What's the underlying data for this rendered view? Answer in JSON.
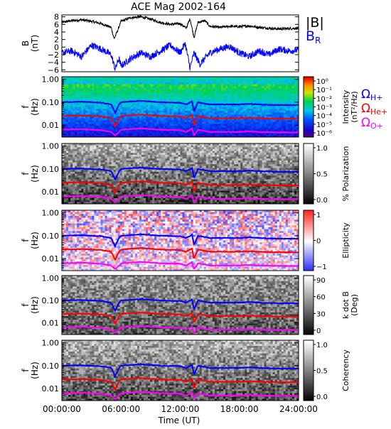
{
  "chart_data": {
    "type": "heatmap",
    "title": "ACE Mag 2002-164",
    "x": {
      "label": "Time (UT)",
      "range": [
        0,
        24
      ],
      "tick_labels": [
        "00:00:00",
        "06:00:00",
        "12:00:00",
        "18:00:00",
        "24:00:00"
      ],
      "tick_values": [
        0,
        6,
        12,
        18,
        24
      ]
    },
    "mag_panel": {
      "ylabel_line1": "B",
      "ylabel_line2": "(nT)",
      "ylim": [
        -6.5,
        8.5
      ],
      "y_tick_labels": [
        "8",
        "6",
        "4",
        "2",
        "0",
        "−2",
        "−4",
        "−6"
      ],
      "y_tick_values": [
        8,
        6,
        4,
        2,
        0,
        -2,
        -4,
        -6
      ],
      "series": [
        {
          "name": "|B|",
          "color": "#000000",
          "key_points": [
            [
              0,
              6.5
            ],
            [
              1,
              7.0
            ],
            [
              2,
              7.2
            ],
            [
              3,
              6.8
            ],
            [
              4,
              6.2
            ],
            [
              5,
              5.2
            ],
            [
              5.3,
              2.2
            ],
            [
              5.6,
              4.0
            ],
            [
              6,
              6.8
            ],
            [
              7,
              7.8
            ],
            [
              8,
              8.0
            ],
            [
              9,
              7.4
            ],
            [
              10,
              6.5
            ],
            [
              11,
              6.0
            ],
            [
              12,
              6.2
            ],
            [
              12.6,
              5.0
            ],
            [
              13,
              7.5
            ],
            [
              13.4,
              2.5
            ],
            [
              13.8,
              6.5
            ],
            [
              14.5,
              7.0
            ],
            [
              15,
              5.5
            ],
            [
              16,
              5.2
            ],
            [
              17,
              5.5
            ],
            [
              18,
              5.4
            ],
            [
              19,
              5.6
            ],
            [
              20,
              5.2
            ],
            [
              21,
              5.0
            ],
            [
              22,
              4.8
            ],
            [
              23,
              4.9
            ],
            [
              24,
              5.0
            ]
          ]
        },
        {
          "name": "B",
          "subscript": "R",
          "color": "#0000ff",
          "key_points": [
            [
              0,
              -1.5
            ],
            [
              1,
              -1.0
            ],
            [
              2,
              -2.5
            ],
            [
              3,
              0.5
            ],
            [
              4,
              -0.5
            ],
            [
              5,
              -2.0
            ],
            [
              5.4,
              -5.8
            ],
            [
              5.8,
              -3.0
            ],
            [
              6,
              -5.0
            ],
            [
              7,
              -3.0
            ],
            [
              8,
              -1.5
            ],
            [
              9,
              -2.5
            ],
            [
              10,
              -1.0
            ],
            [
              11,
              0.5
            ],
            [
              12,
              -1.5
            ],
            [
              12.5,
              1.0
            ],
            [
              13,
              -5.5
            ],
            [
              13.4,
              -1.5
            ],
            [
              14,
              -4.5
            ],
            [
              15,
              -1.5
            ],
            [
              16,
              -0.5
            ],
            [
              17,
              0.2
            ],
            [
              18,
              -1.5
            ],
            [
              19,
              -2.5
            ],
            [
              20,
              -1.0
            ],
            [
              21,
              -2.0
            ],
            [
              22,
              -0.5
            ],
            [
              23,
              -1.0
            ],
            [
              24,
              -0.8
            ]
          ]
        }
      ]
    },
    "freq_panels": [
      {
        "id": "intensity",
        "ylabel_line1": "f",
        "ylabel_line2": "(Hz)",
        "y_tick_labels": [
          "1.00",
          "0.10",
          "0.01"
        ],
        "y_tick_values": [
          1,
          0.1,
          0.01
        ],
        "ylim": [
          0.003,
          1.3
        ],
        "log_scale": true,
        "colormap": "rainbow",
        "colorbar_label_line1": "Intensity",
        "colorbar_label_line2": "(nT²/Hz)",
        "colorbar_tick_labels": [
          "10⁰",
          "10⁻¹",
          "10⁻²",
          "10⁻³",
          "10⁻⁴",
          "10⁻⁵",
          "10⁻⁶"
        ],
        "colorbar_tick_values": [
          0,
          -1,
          -2,
          -3,
          -4,
          -5,
          -6
        ]
      },
      {
        "id": "polarization",
        "ylabel_line1": "f",
        "ylabel_line2": "(Hz)",
        "y_tick_labels": [
          "1.00",
          "0.10",
          "0.01"
        ],
        "y_tick_values": [
          1,
          0.1,
          0.01
        ],
        "ylim": [
          0.003,
          1.3
        ],
        "log_scale": true,
        "colormap": "grayscale",
        "colorbar_label_line1": "% Polarization",
        "colorbar_label_line2": "",
        "colorbar_tick_labels": [
          "1.0",
          "0.5",
          "0.0"
        ],
        "colorbar_tick_values": [
          1,
          0.5,
          0
        ]
      },
      {
        "id": "ellipticity",
        "ylabel_line1": "f",
        "ylabel_line2": "(Hz)",
        "y_tick_labels": [
          "1.00",
          "0.10",
          "0.01"
        ],
        "y_tick_values": [
          1,
          0.1,
          0.01
        ],
        "ylim": [
          0.003,
          1.3
        ],
        "log_scale": true,
        "colormap": "blue-white-red",
        "colorbar_label_line1": "Ellipticity",
        "colorbar_label_line2": "",
        "colorbar_tick_labels": [
          "1",
          "0",
          "−1"
        ],
        "colorbar_tick_values": [
          1,
          0,
          -1
        ]
      },
      {
        "id": "kdotb",
        "ylabel_line1": "f",
        "ylabel_line2": "(Hz)",
        "y_tick_labels": [
          "1.00",
          "0.10",
          "0.01"
        ],
        "y_tick_values": [
          1,
          0.1,
          0.01
        ],
        "ylim": [
          0.003,
          1.3
        ],
        "log_scale": true,
        "colormap": "grayscale",
        "colorbar_label_line1": "k dot B",
        "colorbar_label_line2": "(Deg)",
        "colorbar_tick_labels": [
          "90",
          "60",
          "30",
          "0"
        ],
        "colorbar_tick_values": [
          90,
          60,
          30,
          0
        ]
      },
      {
        "id": "coherency",
        "ylabel_line1": "f",
        "ylabel_line2": "(Hz)",
        "y_tick_labels": [
          "1.00",
          "0.10",
          "0.01"
        ],
        "y_tick_values": [
          1,
          0.1,
          0.01
        ],
        "ylim": [
          0.003,
          1.3
        ],
        "log_scale": true,
        "colormap": "grayscale",
        "colorbar_label_line1": "Coherency",
        "colorbar_label_line2": "",
        "colorbar_tick_labels": [
          "1.0",
          "0.5",
          "0.0"
        ],
        "colorbar_tick_values": [
          1,
          0.5,
          0
        ]
      }
    ],
    "gyrofrequency_lines": [
      {
        "symbol": "Ω",
        "subscript": "H+",
        "color": "#0000ff",
        "key_points": [
          [
            0,
            0.1
          ],
          [
            2,
            0.105
          ],
          [
            4,
            0.095
          ],
          [
            5,
            0.08
          ],
          [
            5.4,
            0.035
          ],
          [
            5.8,
            0.08
          ],
          [
            6,
            0.1
          ],
          [
            8,
            0.115
          ],
          [
            10,
            0.1
          ],
          [
            12,
            0.095
          ],
          [
            12.6,
            0.08
          ],
          [
            13.2,
            0.11
          ],
          [
            13.4,
            0.04
          ],
          [
            13.8,
            0.1
          ],
          [
            15,
            0.08
          ],
          [
            16,
            0.08
          ],
          [
            18,
            0.08
          ],
          [
            19,
            0.085
          ],
          [
            20,
            0.08
          ],
          [
            22,
            0.075
          ],
          [
            24,
            0.075
          ]
        ]
      },
      {
        "symbol": "Ω",
        "subscript": "He+",
        "color": "#ff0000",
        "key_points": [
          [
            0,
            0.025
          ],
          [
            2,
            0.026
          ],
          [
            4,
            0.024
          ],
          [
            5,
            0.02
          ],
          [
            5.4,
            0.009
          ],
          [
            5.8,
            0.02
          ],
          [
            6,
            0.025
          ],
          [
            8,
            0.029
          ],
          [
            10,
            0.025
          ],
          [
            12,
            0.024
          ],
          [
            12.6,
            0.02
          ],
          [
            13.2,
            0.028
          ],
          [
            13.4,
            0.01
          ],
          [
            13.8,
            0.025
          ],
          [
            15,
            0.02
          ],
          [
            16,
            0.02
          ],
          [
            18,
            0.02
          ],
          [
            19,
            0.021
          ],
          [
            20,
            0.02
          ],
          [
            22,
            0.019
          ],
          [
            24,
            0.019
          ]
        ]
      },
      {
        "symbol": "Ω",
        "subscript": "O+",
        "color": "#ff00ff",
        "key_points": [
          [
            0,
            0.0063
          ],
          [
            2,
            0.0066
          ],
          [
            4,
            0.006
          ],
          [
            5,
            0.005
          ],
          [
            5.4,
            0.0035
          ],
          [
            5.8,
            0.005
          ],
          [
            6,
            0.0063
          ],
          [
            8,
            0.0072
          ],
          [
            10,
            0.0063
          ],
          [
            12,
            0.006
          ],
          [
            12.6,
            0.005
          ],
          [
            13.2,
            0.007
          ],
          [
            13.4,
            0.0035
          ],
          [
            13.8,
            0.0063
          ],
          [
            15,
            0.005
          ],
          [
            16,
            0.005
          ],
          [
            18,
            0.005
          ],
          [
            19,
            0.0053
          ],
          [
            20,
            0.005
          ],
          [
            22,
            0.0048
          ],
          [
            24,
            0.0048
          ]
        ]
      }
    ]
  }
}
